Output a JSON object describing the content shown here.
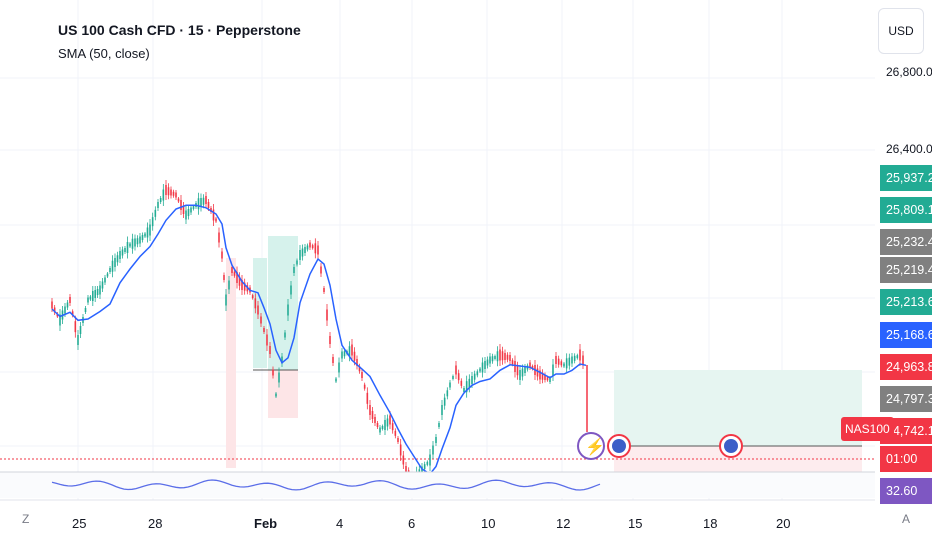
{
  "header": {
    "title": "US 100 Cash CFD · 15 · Pepperstone",
    "indicator": "SMA (50, close)"
  },
  "currency": "USD",
  "axis_prices": [
    "26,800.0",
    "26,400.0"
  ],
  "price_tags": [
    {
      "label": "25,937.2",
      "color": "#22ab94"
    },
    {
      "label": "25,809.1",
      "color": "#22ab94"
    },
    {
      "label": "25,232.4",
      "color": "#808080"
    },
    {
      "label": "25,219.4",
      "color": "#808080"
    },
    {
      "label": "25,213.6",
      "color": "#22ab94"
    },
    {
      "label": "25,168.6",
      "color": "#2962ff"
    },
    {
      "label": "24,963.8",
      "color": "#f23645"
    },
    {
      "label": "24,797.3",
      "color": "#808080"
    },
    {
      "label": "24,742.1",
      "color": "#f23645"
    },
    {
      "label": "01:00",
      "color": "#f23645"
    },
    {
      "label": "32.60",
      "color": "#7e57c2"
    }
  ],
  "symbol_tag": "NAS100",
  "x_labels": [
    "25",
    "28",
    "Feb",
    "4",
    "6",
    "10",
    "12",
    "15",
    "18",
    "20"
  ],
  "scroll_left": "Z",
  "scroll_right": "A",
  "colors": {
    "bull": "#22ab94",
    "bear": "#f23645",
    "sma": "#2962ff"
  }
}
